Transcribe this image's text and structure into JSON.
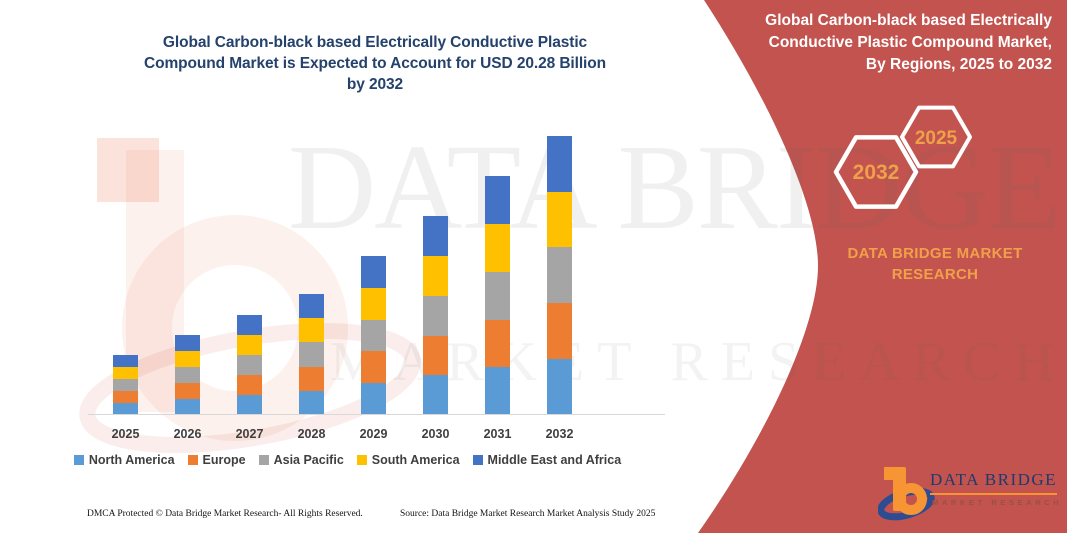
{
  "chart": {
    "title": "Global Carbon-black based Electrically Conductive Plastic Compound Market is Expected to Account for USD 20.28 Billion by 2032"
  },
  "chart_data": {
    "type": "bar",
    "stacked": true,
    "title": "Global Carbon-black based Electrically Conductive Plastic Compound Market is Expected to Account for USD 20.28 Billion by 2032",
    "unit": "USD Billion",
    "categories": [
      "2025",
      "2026",
      "2027",
      "2028",
      "2029",
      "2030",
      "2031",
      "2032"
    ],
    "totals": [
      4.36,
      5.81,
      7.27,
      8.79,
      11.56,
      14.46,
      17.37,
      20.28
    ],
    "series": [
      {
        "name": "North America",
        "color": "#5B9BD5",
        "values": [
          0.87,
          1.16,
          1.45,
          1.76,
          2.31,
          2.89,
          3.47,
          4.06
        ]
      },
      {
        "name": "Europe",
        "color": "#ED7D31",
        "values": [
          0.87,
          1.16,
          1.45,
          1.76,
          2.31,
          2.89,
          3.47,
          4.06
        ]
      },
      {
        "name": "Asia Pacific",
        "color": "#A5A5A5",
        "values": [
          0.87,
          1.16,
          1.45,
          1.76,
          2.31,
          2.89,
          3.47,
          4.06
        ]
      },
      {
        "name": "South America",
        "color": "#FFC000",
        "values": [
          0.87,
          1.16,
          1.45,
          1.76,
          2.31,
          2.89,
          3.47,
          4.06
        ]
      },
      {
        "name": "Middle East and Africa",
        "color": "#4472C4",
        "values": [
          0.87,
          1.16,
          1.45,
          1.76,
          2.31,
          2.89,
          3.47,
          4.06
        ]
      }
    ],
    "legend_position": "bottom",
    "grid": false,
    "ylim": [
      0,
      21
    ]
  },
  "right_panel": {
    "bg_color": "#C2534E",
    "title": "Global Carbon-black based Electrically Conductive Plastic Compound Market, By Regions, 2025 to 2032",
    "hexagons": [
      {
        "label": "2032"
      },
      {
        "label": "2025"
      }
    ],
    "caption": "DATA BRIDGE MARKET RESEARCH",
    "accent_text_color": "#EDA14A"
  },
  "watermark": {
    "line1": "DATA BRIDGE",
    "line2": "MARKET RESEARCH"
  },
  "brand": {
    "wordmark": "DATA BRIDGE",
    "tagline": "MARKET RESEARCH"
  },
  "footer": {
    "left": "DMCA Protected © Data Bridge Market Research-  All Rights Reserved.",
    "right": "Source: Data Bridge Market Research  Market Analysis Study 2025"
  }
}
